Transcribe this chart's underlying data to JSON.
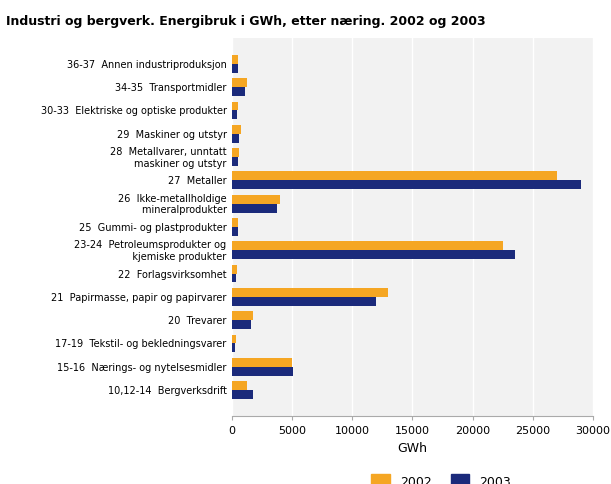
{
  "title": "Industri og bergverk. Energibruk i GWh, etter næring. 2002 og 2003",
  "xlabel": "GWh",
  "categories": [
    "36-37  Annen industriproduksjon",
    "34-35  Transportmidler",
    "30-33  Elektriske og optiske produkter",
    "29  Maskiner og utstyr",
    "28  Metallvarer, unntatt\n        maskiner og utstyr",
    "27  Metaller",
    "26  Ikke-metallholdige\n        mineralprodukter",
    "25  Gummi- og plastprodukter",
    "23-24  Petroleumsprodukter og\n           kjemiske produkter",
    "22  Forlagsvirksomhet",
    "21  Papirmasse, papir og papirvarer",
    "20  Trevarer",
    "17-19  Tekstil- og bekledningsvarer",
    "15-16  Nærings- og nytelsesmidler",
    "10,12-14  Bergverksdrift"
  ],
  "values_2002": [
    500,
    1200,
    450,
    700,
    550,
    27000,
    4000,
    500,
    22500,
    400,
    13000,
    1700,
    300,
    5000,
    1200
  ],
  "values_2003": [
    450,
    1100,
    400,
    600,
    500,
    29000,
    3700,
    450,
    23500,
    350,
    12000,
    1600,
    250,
    5100,
    1700
  ],
  "color_2002": "#F5A623",
  "color_2003": "#1B2A7B",
  "xlim": [
    0,
    30000
  ],
  "xticks": [
    0,
    5000,
    10000,
    15000,
    20000,
    25000,
    30000
  ],
  "background_color": "#F2F2F2",
  "legend_labels": [
    "2002",
    "2003"
  ],
  "bar_height": 0.38
}
